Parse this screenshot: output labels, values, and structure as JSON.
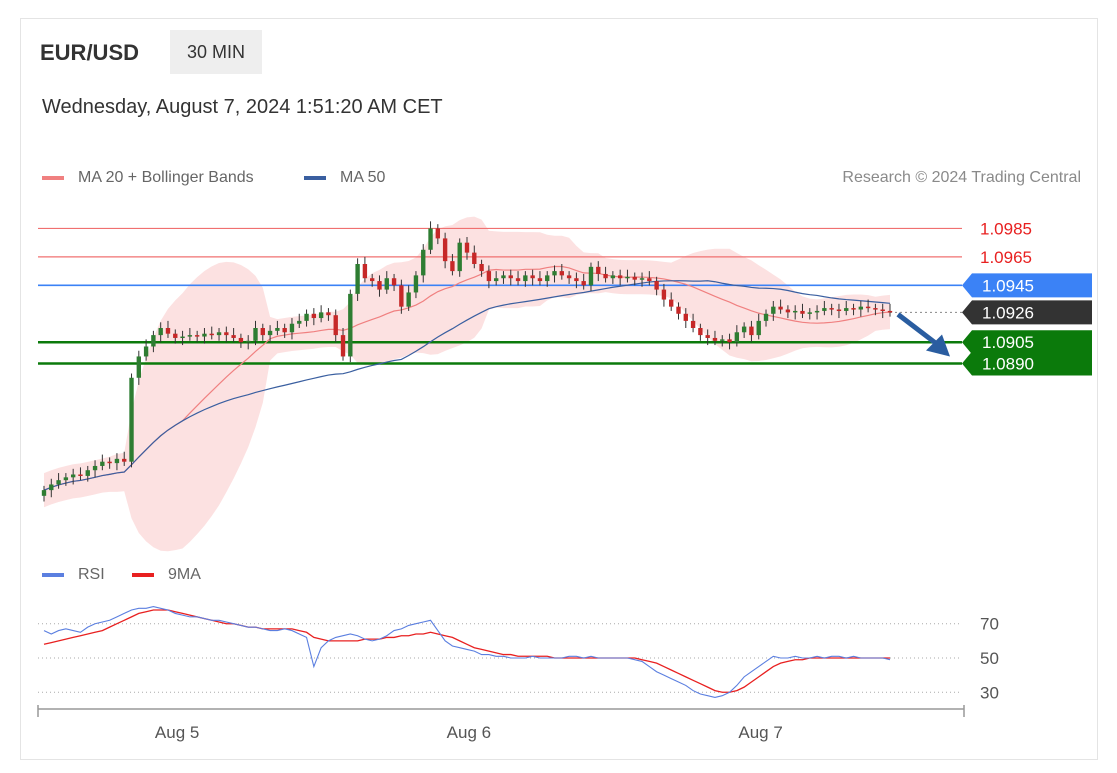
{
  "header": {
    "symbol": "EUR/USD",
    "timeframe": "30 MIN",
    "datetime": "Wednesday, August 7, 2024 1:51:20 AM CET"
  },
  "legend": {
    "ma20": {
      "label": "MA 20 + Bollinger Bands",
      "color": "#f08080"
    },
    "ma50": {
      "label": "MA 50",
      "color": "#3a5fa0"
    },
    "research": "Research © 2024 Trading Central"
  },
  "rsi_legend": {
    "rsi": {
      "label": "RSI",
      "color": "#5b7fe0"
    },
    "ma9": {
      "label": "9MA",
      "color": "#e82020"
    }
  },
  "levels": [
    {
      "value": 1.0985,
      "label": "1.0985",
      "style": "resistance"
    },
    {
      "value": 1.0965,
      "label": "1.0965",
      "style": "resistance"
    },
    {
      "value": 1.0945,
      "label": "1.0945",
      "style": "pivot"
    },
    {
      "value": 1.0926,
      "label": "1.0926",
      "style": "last"
    },
    {
      "value": 1.0905,
      "label": "1.0905",
      "style": "support"
    },
    {
      "value": 1.089,
      "label": "1.0890",
      "style": "support"
    }
  ],
  "colors": {
    "resistance": "#f07070",
    "pivot": "#3b82f6",
    "support": "#0b7a0b",
    "last": "#333333",
    "bull": "#2e7d32",
    "bear": "#c62828",
    "arrow": "#2a5da0"
  },
  "chart_data": [
    {
      "type": "candlestick",
      "ylim": [
        1.078,
        1.1005
      ],
      "x_ticks": [
        {
          "label": "Aug 5",
          "index": 21
        },
        {
          "label": "Aug 6",
          "index": 61
        },
        {
          "label": "Aug 7",
          "index": 101
        }
      ],
      "close": [
        1.0801,
        1.0805,
        1.0808,
        1.081,
        1.0812,
        1.0811,
        1.0815,
        1.0818,
        1.0821,
        1.082,
        1.0823,
        1.0821,
        1.088,
        1.0895,
        1.0902,
        1.091,
        1.0915,
        1.0911,
        1.0908,
        1.0909,
        1.091,
        1.0909,
        1.0911,
        1.091,
        1.0912,
        1.091,
        1.0908,
        1.0905,
        1.0906,
        1.0915,
        1.091,
        1.0913,
        1.0915,
        1.0912,
        1.0918,
        1.092,
        1.0925,
        1.0922,
        1.0926,
        1.0924,
        1.091,
        1.0895,
        1.0939,
        1.096,
        1.095,
        1.0948,
        1.0942,
        1.095,
        1.0945,
        1.093,
        1.094,
        1.0952,
        1.097,
        1.0985,
        1.0978,
        1.0962,
        1.0955,
        1.0975,
        1.0968,
        1.096,
        1.0955,
        1.0948,
        1.095,
        1.0952,
        1.095,
        1.0948,
        1.0952,
        1.095,
        1.0948,
        1.0952,
        1.0955,
        1.0952,
        1.095,
        1.0948,
        1.0945,
        1.0958,
        1.0953,
        1.095,
        1.0952,
        1.095,
        1.0951,
        1.0949,
        1.095,
        1.0948,
        1.0942,
        1.0935,
        1.093,
        1.0925,
        1.092,
        1.0915,
        1.091,
        1.0908,
        1.0906,
        1.0907,
        1.0905,
        1.0912,
        1.0916,
        1.091,
        1.092,
        1.0925,
        1.093,
        1.0928,
        1.0926,
        1.0927,
        1.0925,
        1.0926,
        1.0927,
        1.0929,
        1.0928,
        1.0927,
        1.0929,
        1.0928,
        1.093,
        1.0929,
        1.0928,
        1.0927,
        1.0926
      ]
    },
    {
      "type": "line",
      "name": "RSI",
      "ylabels": [
        "70",
        "50",
        "30"
      ],
      "ylim": [
        15,
        85
      ],
      "rsi": [
        66,
        64,
        66,
        67,
        66,
        65,
        68,
        70,
        71,
        72,
        74,
        76,
        78,
        79,
        79,
        80,
        79,
        78,
        76,
        75,
        74,
        74,
        73,
        72,
        72,
        71,
        70,
        69,
        68,
        68,
        67,
        66,
        66,
        67,
        66,
        64,
        62,
        45,
        56,
        60,
        62,
        63,
        64,
        63,
        61,
        60,
        61,
        63,
        66,
        67,
        69,
        70,
        71,
        72,
        66,
        60,
        57,
        56,
        55,
        54,
        52,
        52,
        51,
        51,
        50,
        50,
        50,
        51,
        50,
        50,
        50,
        50,
        51,
        51,
        50,
        51,
        50,
        50,
        50,
        50,
        50,
        49,
        48,
        45,
        42,
        40,
        38,
        36,
        34,
        31,
        29,
        28,
        27,
        28,
        30,
        34,
        39,
        42,
        45,
        48,
        51,
        50,
        50,
        51,
        50,
        50,
        51,
        50,
        51,
        51,
        50,
        51,
        50,
        50,
        50,
        50,
        49
      ],
      "ma9": [
        58,
        59,
        60,
        61,
        62,
        63,
        64,
        65,
        66,
        68,
        70,
        72,
        74,
        76,
        77,
        78,
        78,
        78,
        77,
        76,
        75,
        74,
        73,
        72,
        71,
        70,
        70,
        69,
        68,
        68,
        67,
        67,
        67,
        67,
        67,
        66,
        65,
        62,
        61,
        60,
        60,
        60,
        60,
        60,
        61,
        61,
        61,
        62,
        62,
        63,
        63,
        64,
        64,
        65,
        64,
        63,
        62,
        60,
        58,
        56,
        55,
        54,
        53,
        52,
        52,
        51,
        51,
        51,
        51,
        51,
        50,
        50,
        50,
        50,
        50,
        50,
        50,
        50,
        50,
        50,
        50,
        50,
        49,
        48,
        47,
        45,
        43,
        41,
        39,
        37,
        35,
        33,
        31,
        30,
        30,
        31,
        33,
        36,
        39,
        42,
        45,
        47,
        48,
        49,
        49,
        50,
        50,
        50,
        50,
        50,
        50,
        50,
        50,
        50,
        50,
        50,
        50
      ]
    }
  ]
}
